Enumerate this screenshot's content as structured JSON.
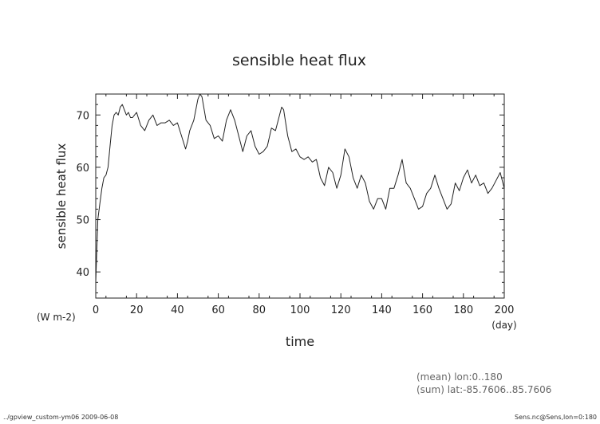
{
  "chart_data": {
    "type": "line",
    "title": "sensible heat flux",
    "xlabel": "time",
    "x_unit": "(day)",
    "ylabel": "sensible heat flux",
    "y_unit": "(W m-2)",
    "xlim": [
      0,
      200
    ],
    "ylim": [
      35,
      74
    ],
    "xticks": [
      0,
      20,
      40,
      60,
      80,
      100,
      120,
      140,
      160,
      180,
      200
    ],
    "yticks": [
      40,
      50,
      60,
      70
    ],
    "grid": false,
    "series": [
      {
        "color": "#222222",
        "x": [
          0,
          1,
          2,
          3,
          4,
          5,
          6,
          7,
          8,
          9,
          10,
          11,
          12,
          13,
          14,
          15,
          16,
          17,
          18,
          19,
          20,
          22,
          24,
          26,
          28,
          30,
          32,
          34,
          36,
          38,
          40,
          42,
          44,
          45,
          46,
          48,
          50,
          51,
          52,
          54,
          56,
          58,
          60,
          62,
          64,
          66,
          68,
          70,
          72,
          74,
          76,
          78,
          80,
          82,
          84,
          86,
          88,
          90,
          91,
          92,
          94,
          96,
          98,
          100,
          102,
          104,
          106,
          108,
          110,
          112,
          114,
          116,
          118,
          120,
          122,
          124,
          126,
          128,
          130,
          132,
          134,
          136,
          138,
          140,
          142,
          144,
          146,
          148,
          150,
          152,
          154,
          156,
          158,
          160,
          162,
          164,
          166,
          168,
          170,
          172,
          174,
          176,
          178,
          180,
          182,
          184,
          186,
          188,
          190,
          192,
          194,
          196,
          198,
          200
        ],
        "y": [
          38,
          50,
          53,
          56,
          58,
          58.5,
          60,
          64,
          68,
          70,
          70.5,
          70,
          71.5,
          72,
          71,
          70,
          70.5,
          69.5,
          69.5,
          70,
          70.5,
          68,
          67,
          69,
          70,
          68,
          68.5,
          68.5,
          69,
          68,
          68.5,
          66,
          63.5,
          65,
          67,
          69,
          73,
          74,
          73.5,
          69,
          68,
          65.5,
          66,
          65,
          69,
          71,
          69,
          66,
          63,
          66,
          67,
          64,
          62.5,
          63,
          64,
          67.5,
          67,
          70,
          71.5,
          71,
          66,
          63,
          63.5,
          62,
          61.5,
          62,
          61,
          61.5,
          58,
          56.5,
          60,
          59,
          56,
          58.5,
          63.5,
          62,
          58,
          56,
          58.5,
          57,
          53.5,
          52,
          54,
          54,
          52,
          56,
          56,
          58.5,
          61.5,
          57,
          56,
          54,
          52,
          52.5,
          55,
          56,
          58.5,
          56,
          54,
          52,
          53,
          57,
          55.5,
          58,
          59.5,
          57,
          58.5,
          56.5,
          57,
          55,
          56,
          57.5,
          59,
          56
        ]
      }
    ]
  },
  "annotations": {
    "mean_line": "(mean) lon:0..180",
    "sum_line": "(sum) lat:-85.7606..85.7606"
  },
  "footer": {
    "left": "../gpview_custom-ym06  2009-06-08",
    "right": "Sens.nc@Sens,lon=0:180"
  }
}
